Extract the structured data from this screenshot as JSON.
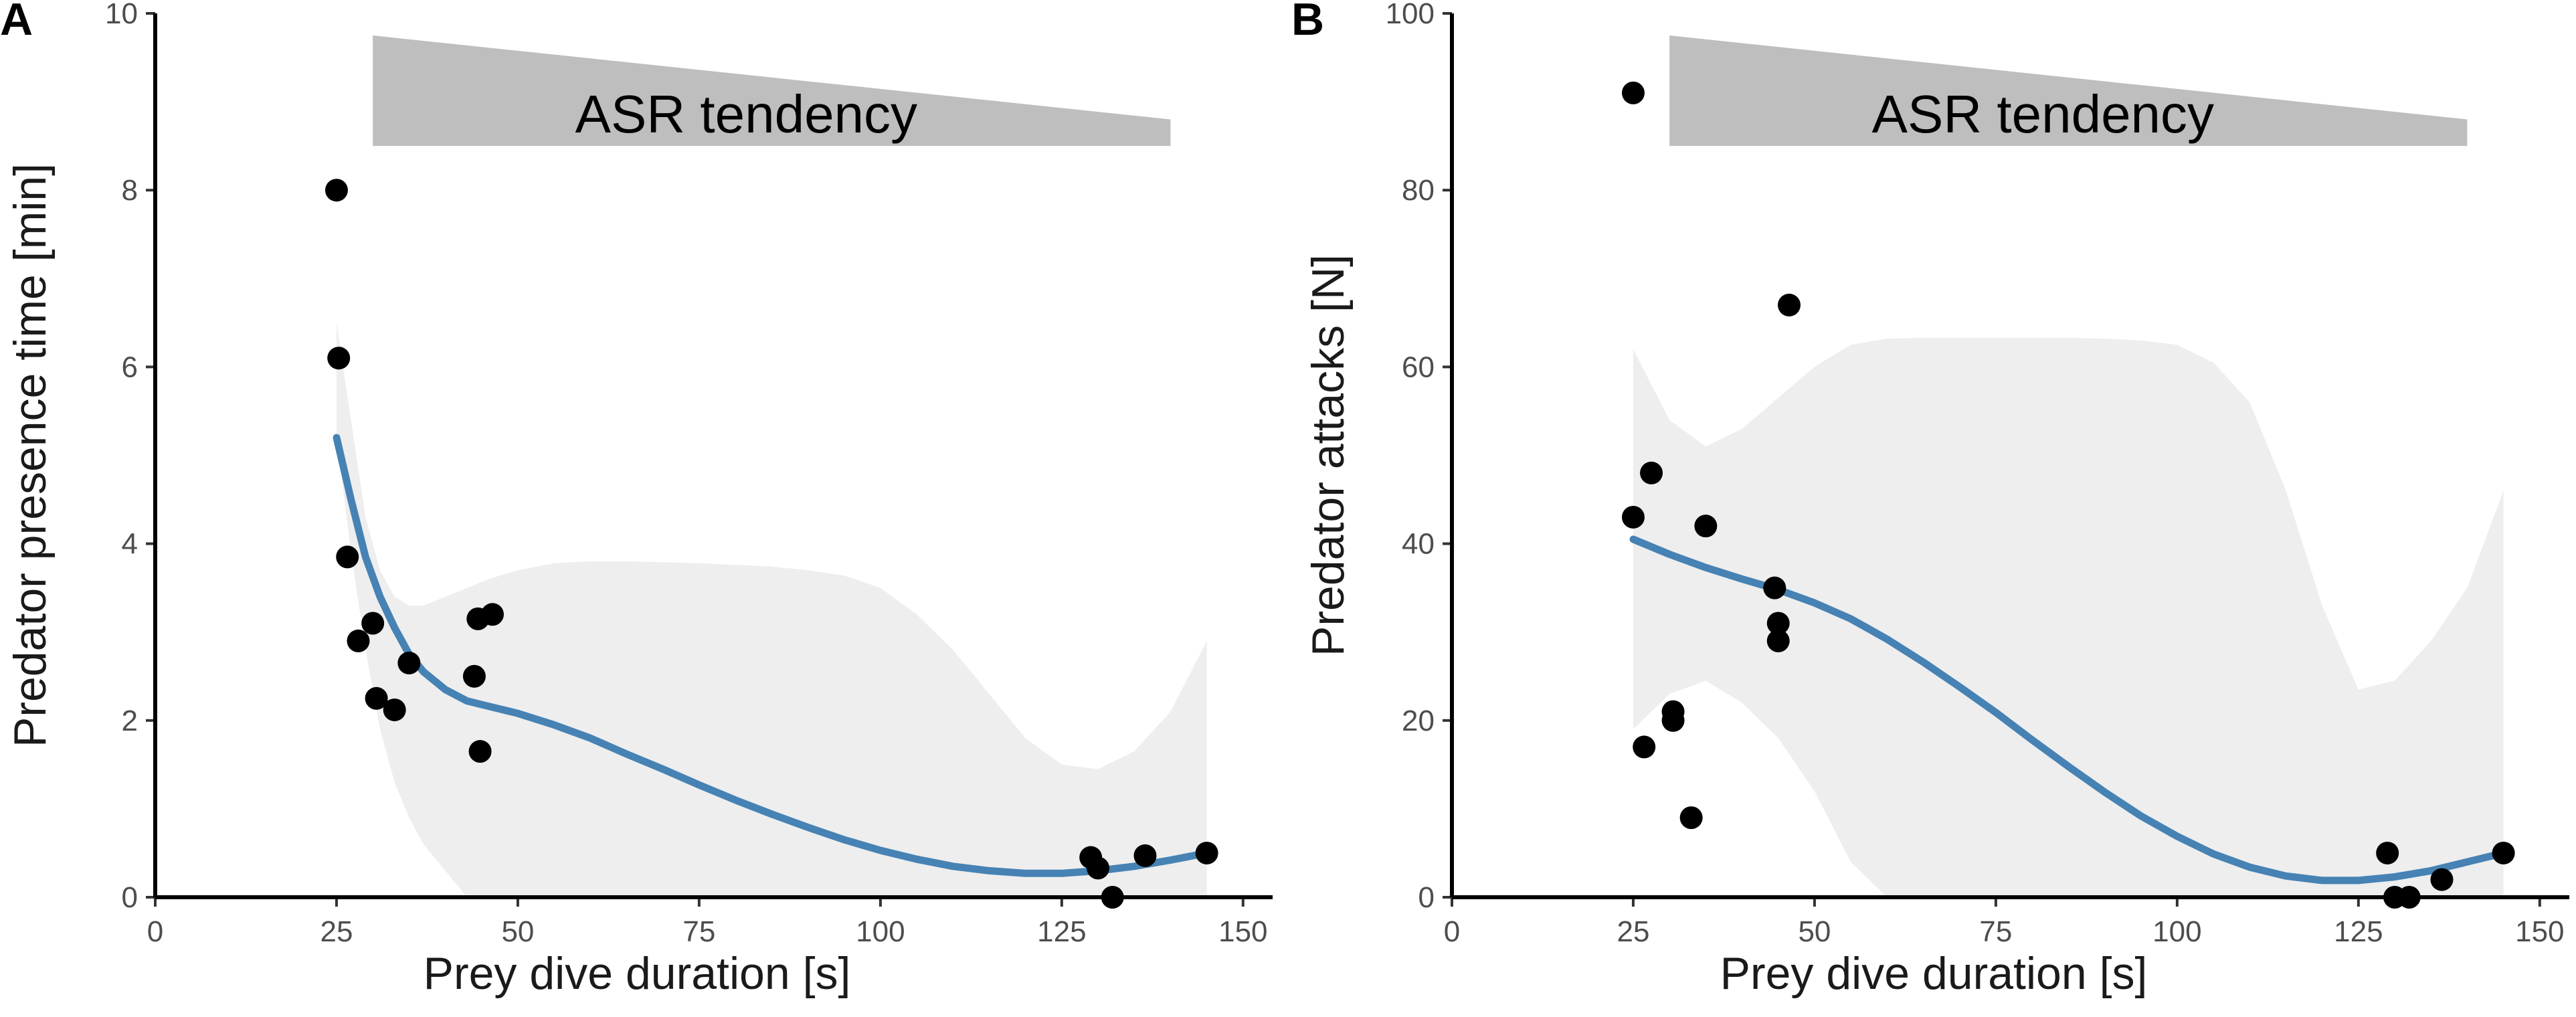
{
  "colors": {
    "fit_line": "#4682b4",
    "ribbon": "#ebebeb",
    "wedge": "#bebebe",
    "points": "#000000",
    "axis": "#000000"
  },
  "chart_data": [
    {
      "panel": "A",
      "type": "scatter",
      "title": "",
      "xlabel": "Prey dive duration [s]",
      "ylabel": "Predator presence time [min]",
      "xlim": [
        0,
        155
      ],
      "ylim": [
        0,
        10
      ],
      "xticks": [
        0,
        25,
        50,
        75,
        100,
        125,
        150
      ],
      "yticks": [
        0,
        2,
        4,
        6,
        8,
        10
      ],
      "annotation": {
        "text": "ASR tendency",
        "shape": "decreasing-wedge",
        "x_start": 30,
        "x_end": 140,
        "y_base": 8.5,
        "y_top_start": 9.75,
        "y_top_end": 8.8
      },
      "points": [
        {
          "x": 25,
          "y": 8.0
        },
        {
          "x": 25.3,
          "y": 6.1
        },
        {
          "x": 26.5,
          "y": 3.85
        },
        {
          "x": 28,
          "y": 2.9
        },
        {
          "x": 30,
          "y": 3.1
        },
        {
          "x": 30.5,
          "y": 2.25
        },
        {
          "x": 33,
          "y": 2.12
        },
        {
          "x": 35,
          "y": 2.65
        },
        {
          "x": 44,
          "y": 2.5
        },
        {
          "x": 44.5,
          "y": 3.15
        },
        {
          "x": 46.5,
          "y": 3.2
        },
        {
          "x": 44.8,
          "y": 1.65
        },
        {
          "x": 129,
          "y": 0.45
        },
        {
          "x": 130,
          "y": 0.33
        },
        {
          "x": 132,
          "y": 0.0
        },
        {
          "x": 136.5,
          "y": 0.47
        },
        {
          "x": 145,
          "y": 0.5
        }
      ],
      "fit": {
        "method": "smooth",
        "x": [
          25,
          27,
          29,
          31,
          33,
          35,
          37,
          40,
          43,
          46,
          50,
          55,
          60,
          65,
          70,
          75,
          80,
          85,
          90,
          95,
          100,
          105,
          110,
          115,
          120,
          125,
          130,
          135,
          140,
          145
        ],
        "y": [
          5.2,
          4.5,
          3.85,
          3.4,
          3.05,
          2.75,
          2.55,
          2.35,
          2.22,
          2.16,
          2.08,
          1.95,
          1.8,
          1.62,
          1.45,
          1.27,
          1.1,
          0.94,
          0.79,
          0.65,
          0.53,
          0.43,
          0.35,
          0.3,
          0.27,
          0.27,
          0.3,
          0.35,
          0.42,
          0.5
        ],
        "lower": [
          5.2,
          3.9,
          2.8,
          1.9,
          1.3,
          0.9,
          0.6,
          0.3,
          0.0,
          0.0,
          0.0,
          0.0,
          0.0,
          0.0,
          0.0,
          0.0,
          0.0,
          0.0,
          0.0,
          0.0,
          0.0,
          0.0,
          0.0,
          0.0,
          0.0,
          0.0,
          0.0,
          0.0,
          0.0,
          0.0
        ],
        "upper": [
          6.5,
          5.4,
          4.3,
          3.7,
          3.4,
          3.3,
          3.3,
          3.4,
          3.5,
          3.6,
          3.7,
          3.78,
          3.8,
          3.8,
          3.79,
          3.78,
          3.76,
          3.74,
          3.7,
          3.64,
          3.5,
          3.2,
          2.8,
          2.3,
          1.8,
          1.5,
          1.45,
          1.65,
          2.1,
          2.9
        ]
      }
    },
    {
      "panel": "B",
      "type": "scatter",
      "title": "",
      "xlabel": "Prey dive duration [s]",
      "ylabel": "Predator attacks [N]",
      "xlim": [
        0,
        155
      ],
      "ylim": [
        0,
        100
      ],
      "xticks": [
        0,
        25,
        50,
        75,
        100,
        125,
        150
      ],
      "yticks": [
        0,
        20,
        40,
        60,
        80,
        100
      ],
      "annotation": {
        "text": "ASR tendency",
        "shape": "decreasing-wedge",
        "x_start": 30,
        "x_end": 140,
        "y_base": 85,
        "y_top_start": 97.5,
        "y_top_end": 88
      },
      "points": [
        {
          "x": 25,
          "y": 91
        },
        {
          "x": 25,
          "y": 43
        },
        {
          "x": 27.5,
          "y": 48
        },
        {
          "x": 26.5,
          "y": 17
        },
        {
          "x": 30.5,
          "y": 21
        },
        {
          "x": 30.5,
          "y": 20
        },
        {
          "x": 33,
          "y": 9
        },
        {
          "x": 35,
          "y": 42
        },
        {
          "x": 44.5,
          "y": 35
        },
        {
          "x": 45,
          "y": 31
        },
        {
          "x": 45,
          "y": 29
        },
        {
          "x": 46.5,
          "y": 67
        },
        {
          "x": 129,
          "y": 5
        },
        {
          "x": 130,
          "y": 0
        },
        {
          "x": 132,
          "y": 0
        },
        {
          "x": 136.5,
          "y": 2
        },
        {
          "x": 145,
          "y": 5
        }
      ],
      "fit": {
        "method": "smooth",
        "x": [
          25,
          30,
          35,
          40,
          45,
          50,
          55,
          60,
          65,
          70,
          75,
          80,
          85,
          90,
          95,
          100,
          105,
          110,
          115,
          120,
          125,
          130,
          135,
          140,
          145
        ],
        "y": [
          40.5,
          38.8,
          37.3,
          36.0,
          34.8,
          33.3,
          31.5,
          29.2,
          26.6,
          23.8,
          20.9,
          17.8,
          14.8,
          11.9,
          9.2,
          6.9,
          4.9,
          3.4,
          2.4,
          1.9,
          1.9,
          2.3,
          3.0,
          4.0,
          5.0
        ],
        "lower": [
          19,
          23,
          24.5,
          22,
          18,
          12,
          4,
          0,
          0,
          0,
          0,
          0,
          0,
          0,
          0,
          0,
          0,
          0,
          0,
          0,
          0,
          0,
          0,
          0,
          0
        ],
        "upper": [
          62,
          54,
          51,
          53,
          56.5,
          60,
          62.5,
          63.2,
          63.3,
          63.3,
          63.3,
          63.3,
          63.3,
          63.2,
          63.0,
          62.5,
          60.5,
          56,
          46,
          33,
          23.5,
          24.5,
          29,
          35,
          46
        ]
      }
    }
  ]
}
